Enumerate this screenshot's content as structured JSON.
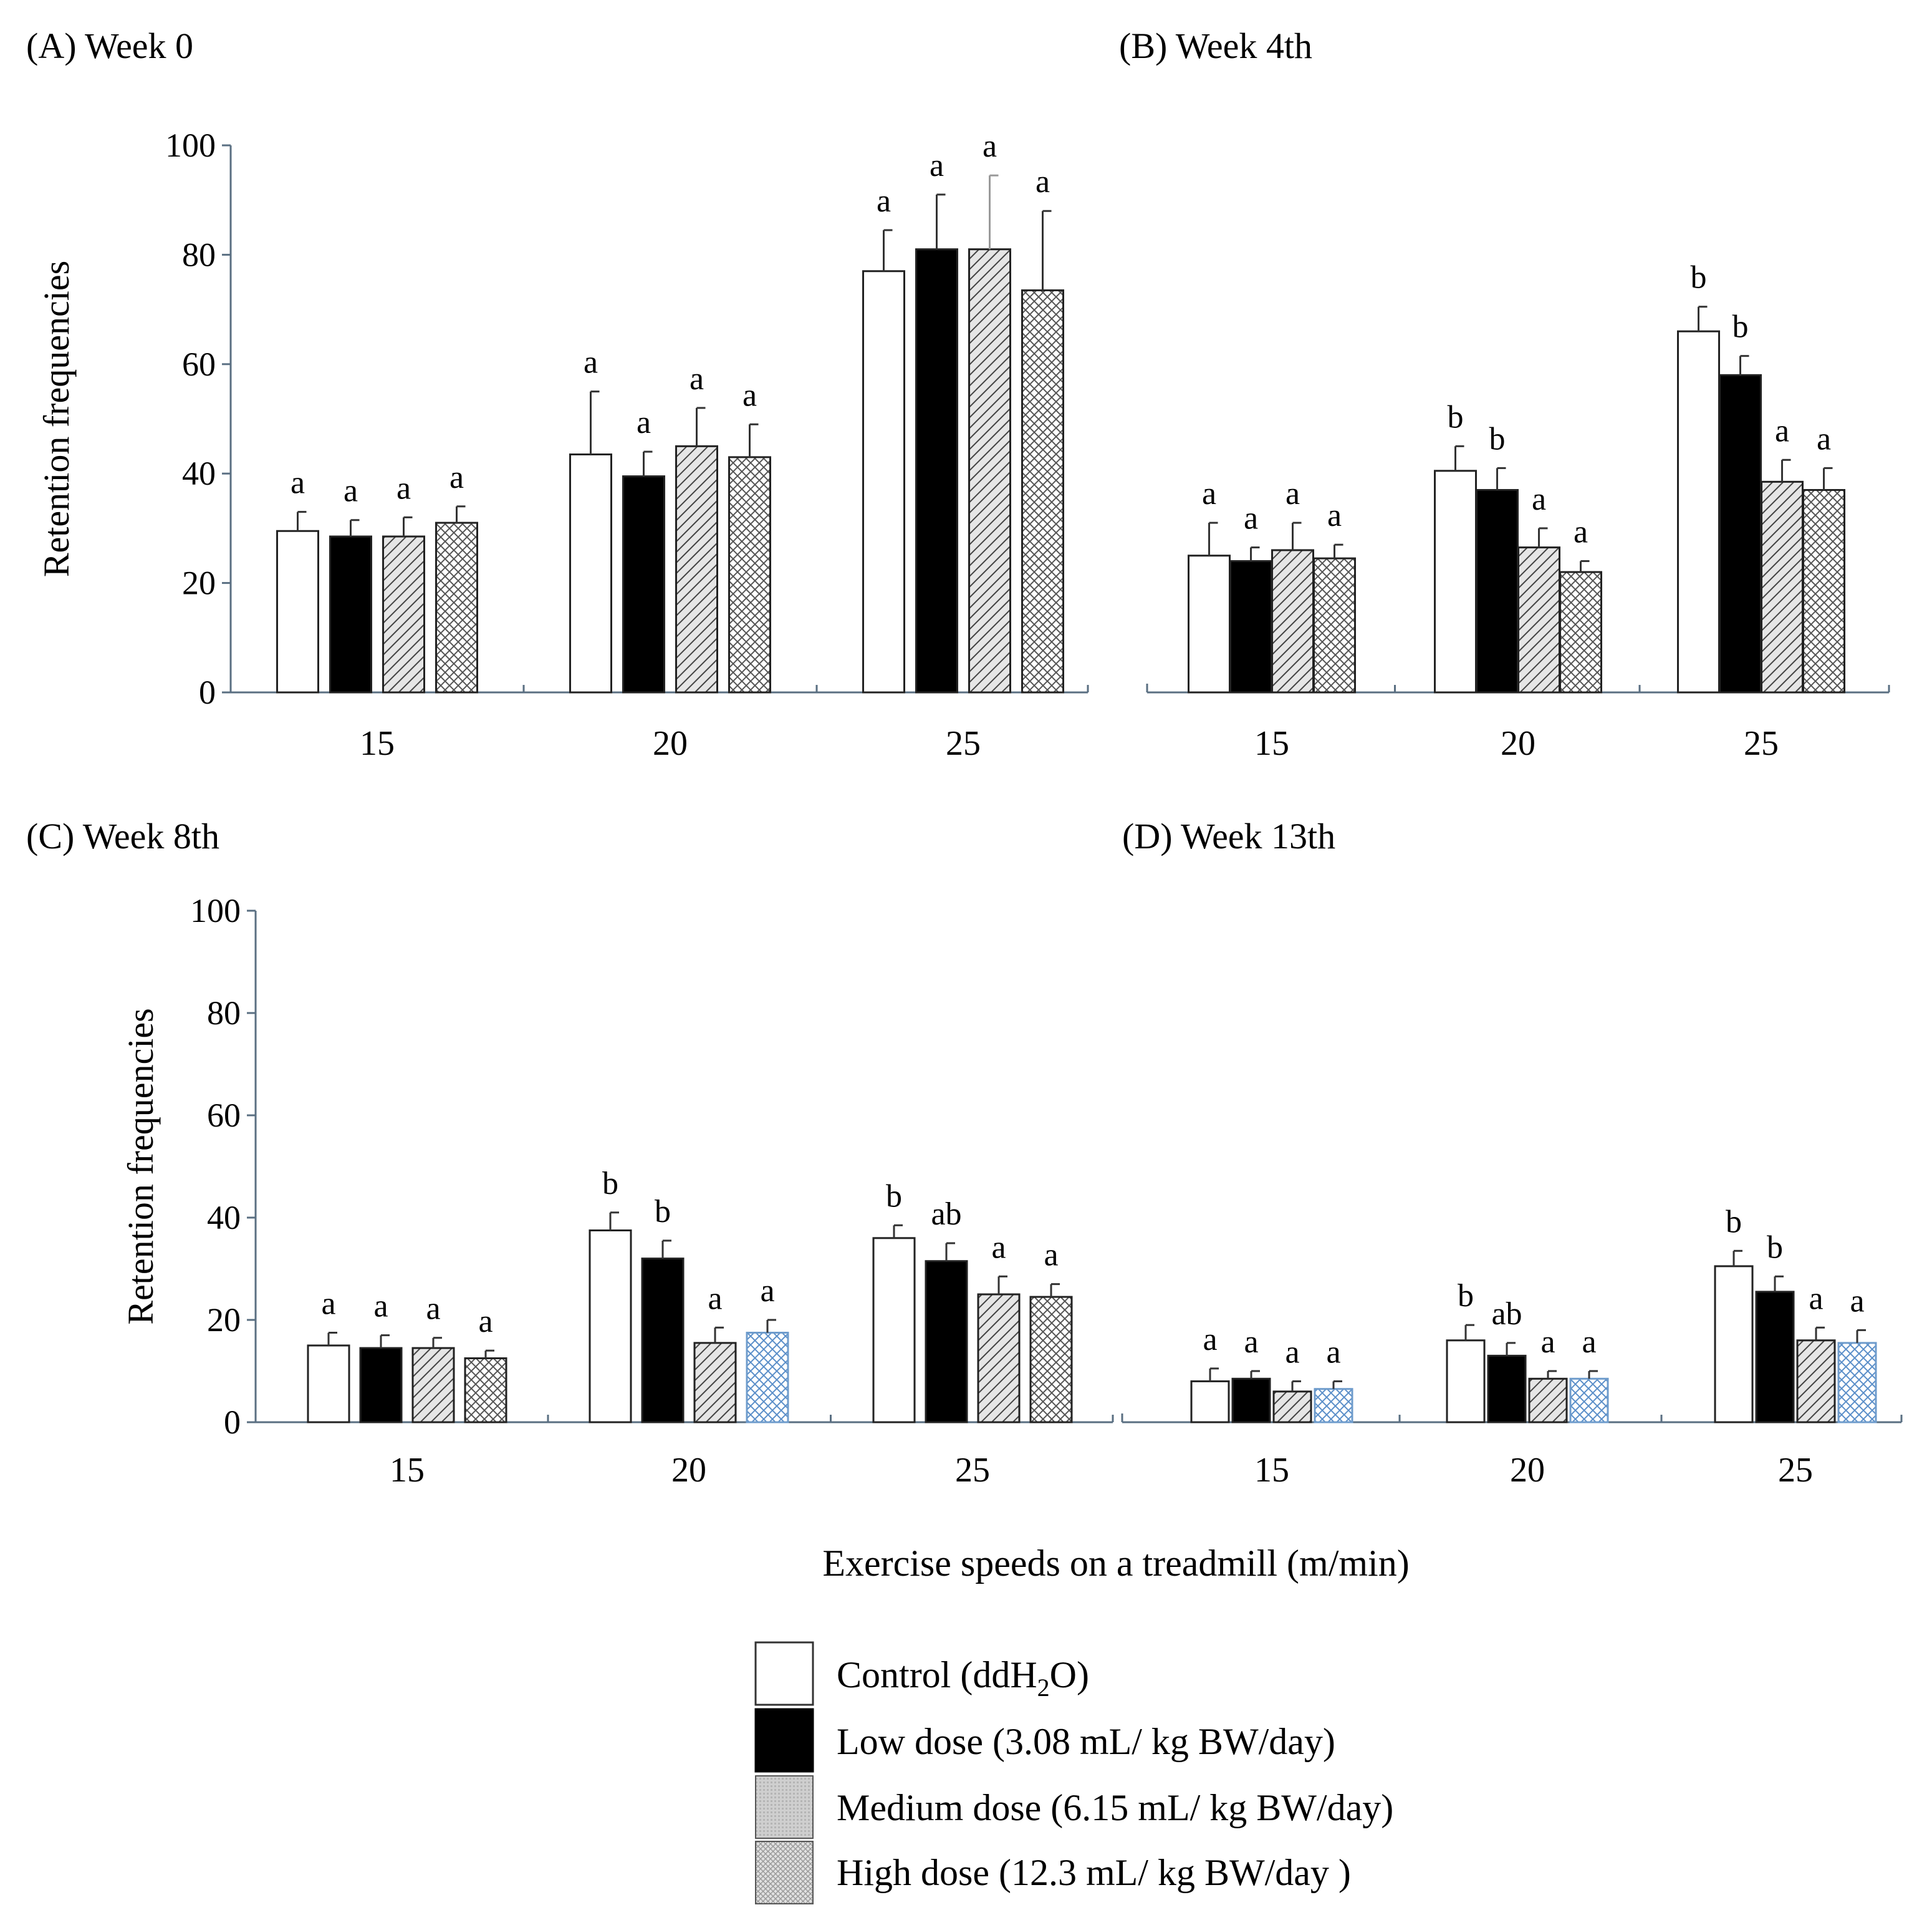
{
  "figure": {
    "xlabel": "Exercise speeds on a treadmill (m/min)"
  },
  "series_styles": [
    {
      "name": "Control",
      "fill": "#ffffff",
      "pattern": "none"
    },
    {
      "name": "Low dose",
      "fill": "#000000",
      "pattern": "solid"
    },
    {
      "name": "Medium dose",
      "fill": "#e4e4e4",
      "pattern": "diagonal-hatch"
    },
    {
      "name": "High dose",
      "fill": "#ffffff",
      "pattern": "cross-hatch"
    }
  ],
  "colors": {
    "axis": "#5a6f82",
    "bar_outline": "#222222",
    "hatch": "#555555",
    "hatch_blue": "#5b8fc9"
  },
  "legend": {
    "items": [
      {
        "label_pre": "Control (ddH",
        "label_sub": "2",
        "label_post": "O)"
      },
      {
        "label_pre": "Low dose (3.08 mL/ kg BW/day)",
        "label_sub": "",
        "label_post": ""
      },
      {
        "label_pre": "Medium dose (6.15 mL/ kg BW/day)",
        "label_sub": "",
        "label_post": ""
      },
      {
        "label_pre": "High dose (12.3 mL/ kg BW/day )",
        "label_sub": "",
        "label_post": ""
      }
    ]
  },
  "chart_data": [
    {
      "type": "bar",
      "title": "(A) Week 0",
      "xlabel": "",
      "ylabel": "Retention frequencies",
      "ylim": [
        0,
        100
      ],
      "yticks": [
        0,
        20,
        40,
        60,
        80,
        100
      ],
      "categories": [
        "15",
        "20",
        "25"
      ],
      "series": [
        {
          "name": "Control (ddH2O)",
          "values": [
            29.5,
            43.5,
            77
          ],
          "errors": [
            3.5,
            11.5,
            7.5
          ],
          "labels": [
            "a",
            "a",
            "a"
          ]
        },
        {
          "name": "Low dose (3.08 mL/ kg BW/day)",
          "values": [
            28.5,
            39.5,
            81
          ],
          "errors": [
            3,
            4.5,
            10
          ],
          "labels": [
            "a",
            "a",
            "a"
          ]
        },
        {
          "name": "Medium dose (6.15 mL/ kg BW/day)",
          "values": [
            28.5,
            45,
            81
          ],
          "errors": [
            3.5,
            7,
            13.5
          ],
          "labels": [
            "a",
            "a",
            "a"
          ]
        },
        {
          "name": "High dose (12.3 mL/ kg BW/day )",
          "values": [
            31,
            43,
            73.5
          ],
          "errors": [
            3,
            6,
            14.5
          ],
          "labels": [
            "a",
            "a",
            "a"
          ]
        }
      ]
    },
    {
      "type": "bar",
      "title": "(B) Week 4th",
      "xlabel": "",
      "ylabel": "",
      "ylim": [
        0,
        100
      ],
      "yticks": [],
      "categories": [
        "15",
        "20",
        "25"
      ],
      "series": [
        {
          "name": "Control (ddH2O)",
          "values": [
            25,
            40.5,
            66
          ],
          "errors": [
            6,
            4.5,
            4.5
          ],
          "labels": [
            "a",
            "b",
            "b"
          ]
        },
        {
          "name": "Low dose (3.08 mL/ kg BW/day)",
          "values": [
            24,
            37,
            58
          ],
          "errors": [
            2.5,
            4,
            3.5
          ],
          "labels": [
            "a",
            "b",
            "b"
          ]
        },
        {
          "name": "Medium dose (6.15 mL/ kg BW/day)",
          "values": [
            26,
            26.5,
            38.5
          ],
          "errors": [
            5,
            3.5,
            4
          ],
          "labels": [
            "a",
            "a",
            "a"
          ]
        },
        {
          "name": "High dose (12.3 mL/ kg BW/day )",
          "values": [
            24.5,
            22,
            37
          ],
          "errors": [
            2.5,
            2,
            4
          ],
          "labels": [
            "a",
            "a",
            "a"
          ]
        }
      ]
    },
    {
      "type": "bar",
      "title": "(C) Week 8th",
      "xlabel": "",
      "ylabel": "Retention frequencies",
      "ylim": [
        0,
        100
      ],
      "yticks": [
        0,
        20,
        40,
        60,
        80,
        100
      ],
      "categories": [
        "15",
        "20",
        "25"
      ],
      "series": [
        {
          "name": "Control (ddH2O)",
          "values": [
            15,
            37.5,
            36
          ],
          "errors": [
            2.5,
            3.5,
            2.5
          ],
          "labels": [
            "a",
            "b",
            "b"
          ]
        },
        {
          "name": "Low dose (3.08 mL/ kg BW/day)",
          "values": [
            14.5,
            32,
            31.5
          ],
          "errors": [
            2.5,
            3.5,
            3.5
          ],
          "labels": [
            "a",
            "b",
            "ab"
          ]
        },
        {
          "name": "Medium dose (6.15 mL/ kg BW/day)",
          "values": [
            14.5,
            15.5,
            25
          ],
          "errors": [
            2,
            3,
            3.5
          ],
          "labels": [
            "a",
            "a",
            "a"
          ]
        },
        {
          "name": "High dose (12.3 mL/ kg BW/day )",
          "values": [
            12.5,
            17.5,
            24.5
          ],
          "errors": [
            1.5,
            2.5,
            2.5
          ],
          "labels": [
            "a",
            "a",
            "a"
          ]
        }
      ]
    },
    {
      "type": "bar",
      "title": "(D) Week 13th",
      "xlabel": "",
      "ylabel": "",
      "ylim": [
        0,
        100
      ],
      "yticks": [],
      "categories": [
        "15",
        "20",
        "25"
      ],
      "series": [
        {
          "name": "Control (ddH2O)",
          "values": [
            8,
            16,
            30.5
          ],
          "errors": [
            2.5,
            3,
            3
          ],
          "labels": [
            "a",
            "b",
            "b"
          ]
        },
        {
          "name": "Low dose (3.08 mL/ kg BW/day)",
          "values": [
            8.5,
            13,
            25.5
          ],
          "errors": [
            1.5,
            2.5,
            3
          ],
          "labels": [
            "a",
            "ab",
            "b"
          ]
        },
        {
          "name": "Medium dose (6.15 mL/ kg BW/day)",
          "values": [
            6,
            8.5,
            16
          ],
          "errors": [
            2,
            1.5,
            2.5
          ],
          "labels": [
            "a",
            "a",
            "a"
          ]
        },
        {
          "name": "High dose (12.3 mL/ kg BW/day )",
          "values": [
            6.5,
            8.5,
            15.5
          ],
          "errors": [
            1.5,
            1.5,
            2.5
          ],
          "labels": [
            "a",
            "a",
            "a"
          ]
        }
      ]
    }
  ]
}
